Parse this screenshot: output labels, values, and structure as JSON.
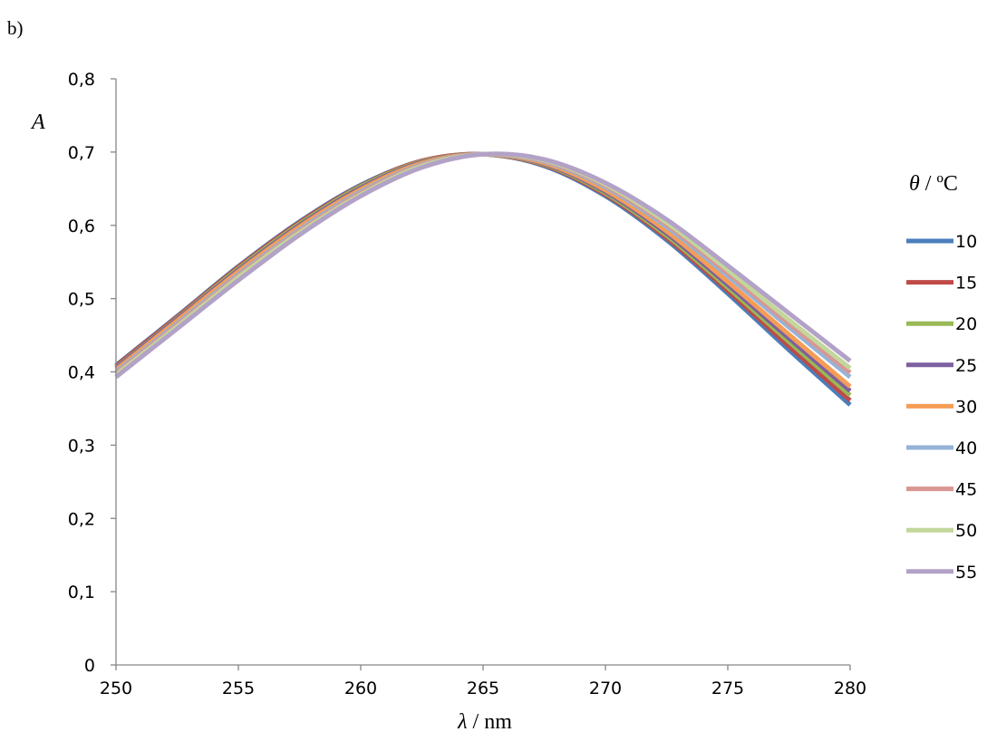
{
  "panel_label": "b)",
  "chart_data": {
    "type": "line",
    "ylabel": "A",
    "xlabel_symbol": "λ",
    "xlabel_unit": " / nm",
    "legend_title_symbol": "θ",
    "legend_title_unit": " / ºC",
    "xlim": [
      250,
      280
    ],
    "ylim": [
      0,
      0.8
    ],
    "x_ticks": [
      250,
      255,
      260,
      265,
      270,
      275,
      280
    ],
    "y_ticks": [
      0,
      0.1,
      0.2,
      0.3,
      0.4,
      0.5,
      0.6,
      0.7,
      0.8
    ],
    "y_tick_labels": [
      "0",
      "0,1",
      "0,2",
      "0,3",
      "0,4",
      "0,5",
      "0,6",
      "0,7",
      "0,8"
    ],
    "x_tick_labels": [
      "250",
      "255",
      "260",
      "265",
      "270",
      "275",
      "280"
    ],
    "grid": false,
    "legend_position": "right",
    "x": [
      250,
      252.5,
      255,
      257.5,
      260,
      262.5,
      265,
      267.5,
      270,
      272.5,
      275,
      277.5,
      280
    ],
    "series": [
      {
        "name": "10",
        "color": "#4a7ebb",
        "values": [
          0.409,
          0.476,
          0.544,
          0.605,
          0.655,
          0.688,
          0.697,
          0.681,
          0.64,
          0.58,
          0.507,
          0.43,
          0.355
        ]
      },
      {
        "name": "15",
        "color": "#be4b48",
        "values": [
          0.408,
          0.475,
          0.543,
          0.604,
          0.654,
          0.688,
          0.697,
          0.682,
          0.642,
          0.583,
          0.511,
          0.435,
          0.361
        ]
      },
      {
        "name": "20",
        "color": "#98b954",
        "values": [
          0.406,
          0.473,
          0.541,
          0.602,
          0.653,
          0.687,
          0.697,
          0.683,
          0.644,
          0.586,
          0.515,
          0.441,
          0.368
        ]
      },
      {
        "name": "25",
        "color": "#7d60a0",
        "values": [
          0.405,
          0.472,
          0.539,
          0.6,
          0.651,
          0.686,
          0.697,
          0.684,
          0.646,
          0.589,
          0.519,
          0.446,
          0.374
        ]
      },
      {
        "name": "30",
        "color": "#f59d56",
        "values": [
          0.403,
          0.47,
          0.537,
          0.598,
          0.649,
          0.685,
          0.697,
          0.685,
          0.648,
          0.592,
          0.523,
          0.451,
          0.38
        ]
      },
      {
        "name": "40",
        "color": "#95b3d7",
        "values": [
          0.4,
          0.466,
          0.533,
          0.594,
          0.646,
          0.683,
          0.697,
          0.687,
          0.652,
          0.598,
          0.531,
          0.461,
          0.393
        ]
      },
      {
        "name": "45",
        "color": "#d99694",
        "values": [
          0.398,
          0.464,
          0.531,
          0.592,
          0.644,
          0.682,
          0.697,
          0.688,
          0.654,
          0.601,
          0.535,
          0.466,
          0.399
        ]
      },
      {
        "name": "50",
        "color": "#c3d69b",
        "values": [
          0.396,
          0.462,
          0.529,
          0.59,
          0.642,
          0.681,
          0.697,
          0.689,
          0.656,
          0.604,
          0.539,
          0.471,
          0.405
        ]
      },
      {
        "name": "55",
        "color": "#b3a2c7",
        "values": [
          0.393,
          0.459,
          0.525,
          0.587,
          0.64,
          0.679,
          0.697,
          0.69,
          0.658,
          0.608,
          0.545,
          0.48,
          0.415
        ]
      }
    ]
  }
}
